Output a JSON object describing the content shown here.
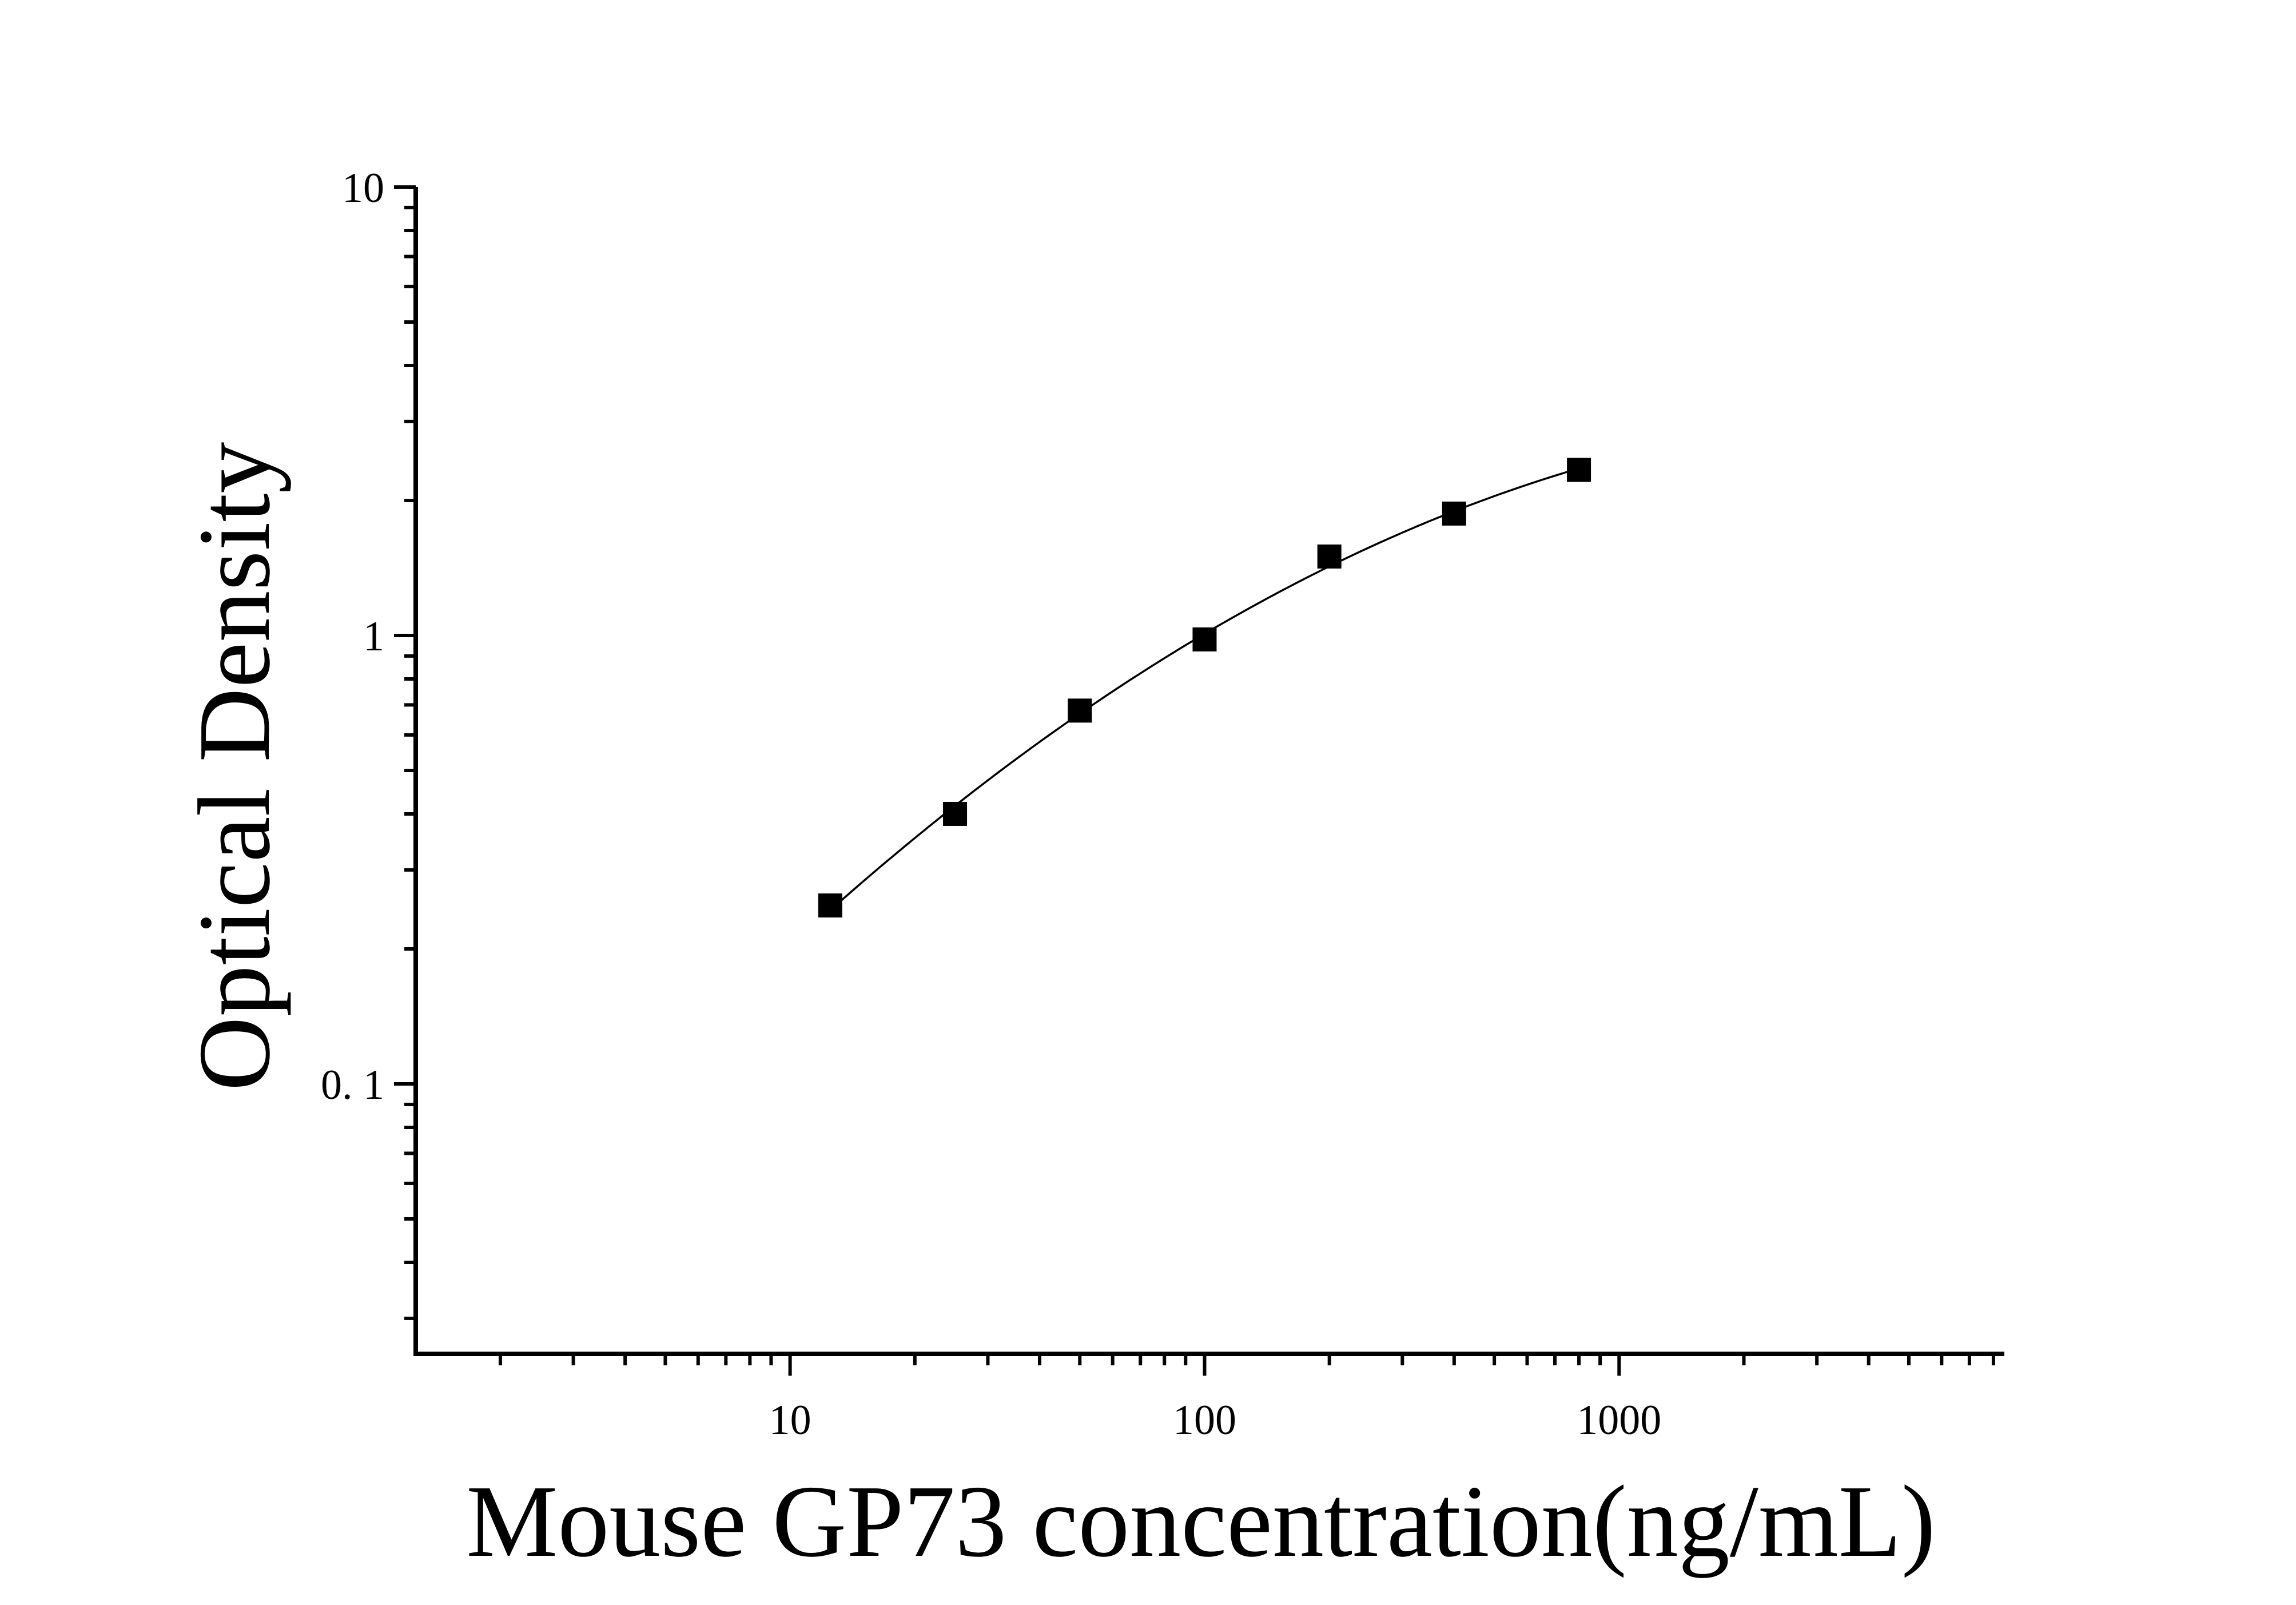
{
  "chart_data": {
    "type": "scatter",
    "title": "",
    "xlabel": "Mouse GP73 concentration(ng/mL)",
    "ylabel": "Optical Density",
    "xscale": "log",
    "yscale": "log",
    "xlim": [
      1.25,
      8500
    ],
    "ylim": [
      0.025,
      10
    ],
    "x_tick_labels": [
      {
        "value": 10,
        "label": "10"
      },
      {
        "value": 100,
        "label": "100"
      },
      {
        "value": 1000,
        "label": "1000"
      }
    ],
    "y_tick_labels": [
      {
        "value": 10,
        "label": "10"
      },
      {
        "value": 1,
        "label": "1"
      },
      {
        "value": 0.1,
        "label": "0. 1"
      }
    ],
    "grid": false,
    "legend": "none",
    "marker": "filled-square",
    "colors": {
      "marker": "#000000",
      "line": "#000000",
      "axes": "#000000"
    },
    "series": [
      {
        "x": [
          12.5,
          25,
          50,
          100,
          200,
          400,
          800
        ],
        "y": [
          0.25,
          0.4,
          0.68,
          0.98,
          1.5,
          1.87,
          2.34
        ],
        "fit": "smooth-curve"
      }
    ]
  }
}
